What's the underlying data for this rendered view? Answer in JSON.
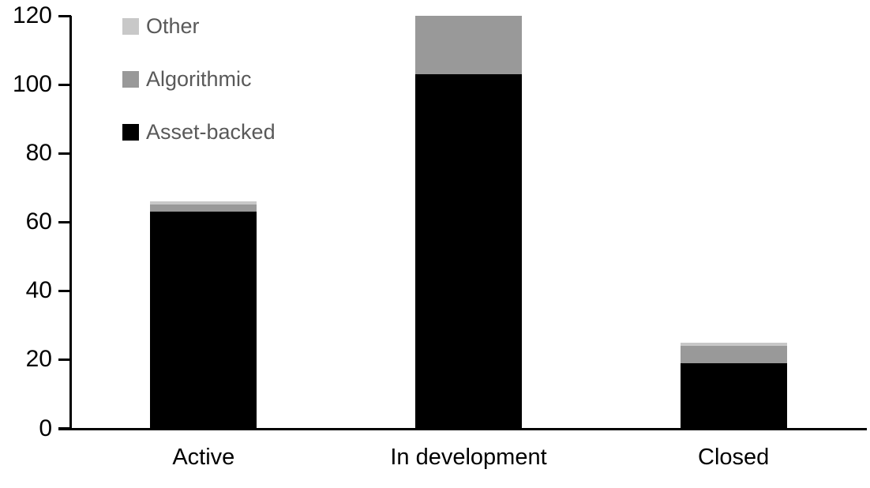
{
  "chart_data": {
    "type": "bar",
    "stacked": true,
    "title": "",
    "xlabel": "",
    "ylabel": "",
    "categories": [
      "Active",
      "In development",
      "Closed"
    ],
    "series": [
      {
        "name": "Asset-backed",
        "color": "#000000",
        "values": [
          63,
          103,
          19
        ]
      },
      {
        "name": "Algorithmic",
        "color": "#999999",
        "values": [
          2,
          17,
          5
        ]
      },
      {
        "name": "Other",
        "color": "#c8c8c8",
        "values": [
          1,
          0,
          1
        ]
      }
    ],
    "ylim": [
      0,
      120
    ],
    "yticks": [
      0,
      20,
      40,
      60,
      80,
      100,
      120
    ],
    "grid": false,
    "legend": {
      "position": "top-left",
      "order_top_to_bottom": [
        "Other",
        "Algorithmic",
        "Asset-backed"
      ],
      "text_color": "#595959"
    },
    "axis_color": "#000000",
    "background_color": "#ffffff"
  }
}
